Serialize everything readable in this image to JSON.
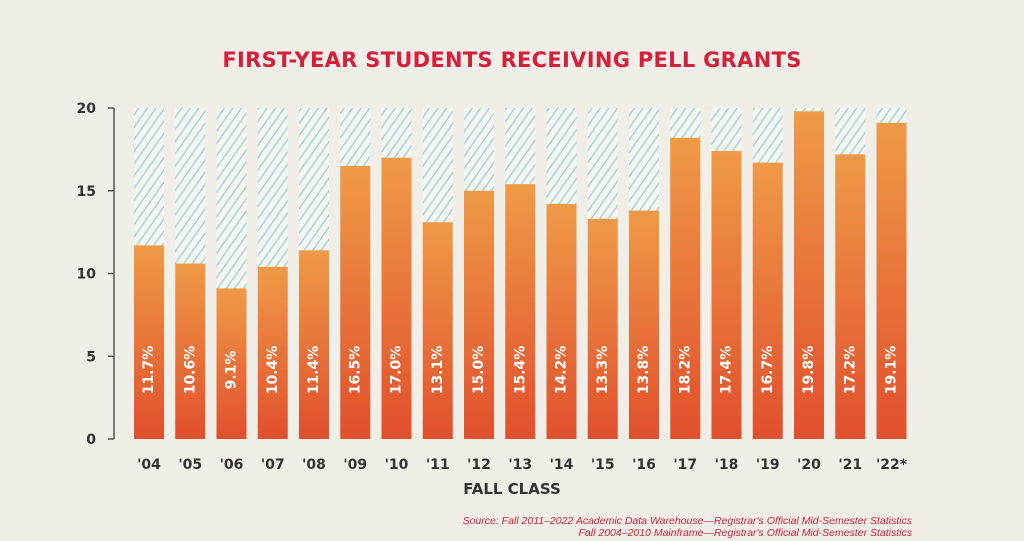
{
  "chart_data": {
    "type": "bar",
    "title": "FIRST-YEAR STUDENTS RECEIVING PELL GRANTS",
    "xlabel": "FALL CLASS",
    "ylabel": "",
    "ylim": [
      0,
      20
    ],
    "yticks": [
      "0",
      "5",
      "10",
      "15",
      "20"
    ],
    "categories": [
      "'04",
      "'05",
      "'06",
      "'07",
      "'08",
      "'09",
      "'10",
      "'11",
      "'12",
      "'13",
      "'14",
      "'15",
      "'16",
      "'17",
      "'18",
      "'19",
      "'20",
      "'21",
      "'22*"
    ],
    "values": [
      11.7,
      10.6,
      9.1,
      10.4,
      11.4,
      16.5,
      17.0,
      13.1,
      15.0,
      15.4,
      14.2,
      13.3,
      13.8,
      18.2,
      17.4,
      16.7,
      19.8,
      17.2,
      19.1
    ],
    "data_labels": [
      "11.7%",
      "10.6%",
      "9.1%",
      "10.4%",
      "11.4%",
      "16.5%",
      "17.0%",
      "13.1%",
      "15.0%",
      "15.4%",
      "14.2%",
      "13.3%",
      "13.8%",
      "18.2%",
      "17.4%",
      "16.7%",
      "19.8%",
      "17.2%",
      "19.1%"
    ],
    "grid": false,
    "colors": {
      "bar_top": "#ef9a47",
      "bar_bottom": "#e14f2d",
      "hatch": "#a9d3d6",
      "title": "#d4213b",
      "axis": "#555555"
    }
  },
  "source": {
    "line1": "Source: Fall 2011–2022 Academic Data Warehouse—Registrar's Official Mid-Semester Statistics",
    "line2": "Fall 2004–2010 Mainframe—Registrar's Official Mid-Semester Statistics"
  }
}
